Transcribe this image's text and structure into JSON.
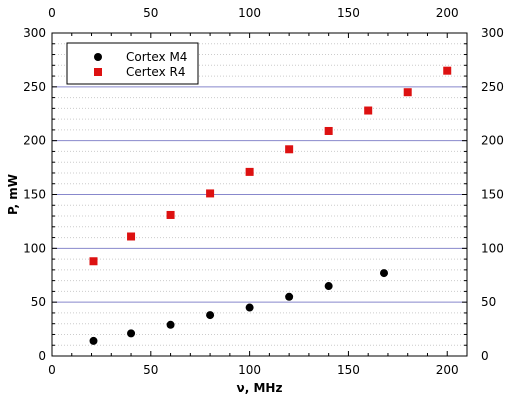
{
  "chart_data": {
    "type": "scatter",
    "xlabel": "ν, MHz",
    "ylabel": "P, mW",
    "xlim": [
      0,
      210
    ],
    "ylim": [
      0,
      300
    ],
    "x_ticks": [
      0,
      50,
      100,
      150,
      200
    ],
    "y_ticks": [
      0,
      50,
      100,
      150,
      200,
      250,
      300
    ],
    "x_tick_labels": [
      "0",
      "50",
      "100",
      "150",
      "200"
    ],
    "y_tick_labels": [
      "0",
      "50",
      "100",
      "150",
      "200",
      "250",
      "300"
    ],
    "grid": {
      "major_y": true,
      "major_color": "#8888cc",
      "minor_y": true,
      "minor_color": "#cccccc",
      "minor_step": 10
    },
    "legend_position": "top-left",
    "series": [
      {
        "name": "Cortex M4",
        "marker": "circle",
        "color": "#000000",
        "x": [
          21,
          40,
          60,
          80,
          100,
          120,
          140,
          168
        ],
        "y": [
          14,
          21,
          29,
          38,
          45,
          55,
          65,
          77
        ]
      },
      {
        "name": "Certex R4",
        "marker": "square",
        "color": "#dd1111",
        "x": [
          21,
          40,
          60,
          80,
          100,
          120,
          140,
          160,
          180,
          200
        ],
        "y": [
          88,
          111,
          131,
          151,
          171,
          192,
          209,
          228,
          245,
          265
        ]
      }
    ]
  }
}
